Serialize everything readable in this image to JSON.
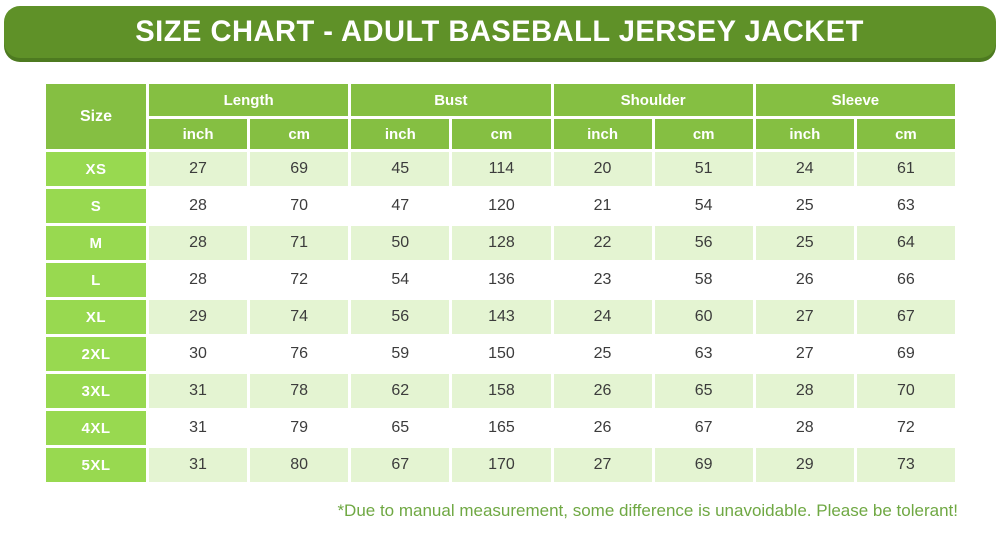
{
  "banner": {
    "title": "SIZE CHART - ADULT BASEBALL JERSEY JACKET"
  },
  "colors": {
    "banner_green": "#5f9128",
    "banner_shadow": "#4d7a20",
    "header_green": "#85bf42",
    "size_col_green": "#98d950",
    "row_alt_green": "#e4f4d2",
    "row_white": "#ffffff",
    "text_dark": "#3c3c3c",
    "footer_green": "#6fa843"
  },
  "table": {
    "size_header": "Size",
    "groups": [
      "Length",
      "Bust",
      "Shoulder",
      "Sleeve"
    ],
    "unit_headers": [
      "inch",
      "cm"
    ]
  },
  "chart_data": {
    "type": "table",
    "title": "SIZE CHART - ADULT BASEBALL JERSEY JACKET",
    "column_groups": [
      "Size",
      "Length",
      "Bust",
      "Shoulder",
      "Sleeve"
    ],
    "columns": [
      "Size",
      "Length (inch)",
      "Length (cm)",
      "Bust (inch)",
      "Bust (cm)",
      "Shoulder (inch)",
      "Shoulder (cm)",
      "Sleeve (inch)",
      "Sleeve (cm)"
    ],
    "rows": [
      [
        "XS",
        27,
        69,
        45,
        114,
        20,
        51,
        24,
        61
      ],
      [
        "S",
        28,
        70,
        47,
        120,
        21,
        54,
        25,
        63
      ],
      [
        "M",
        28,
        71,
        50,
        128,
        22,
        56,
        25,
        64
      ],
      [
        "L",
        28,
        72,
        54,
        136,
        23,
        58,
        26,
        66
      ],
      [
        "XL",
        29,
        74,
        56,
        143,
        24,
        60,
        27,
        67
      ],
      [
        "2XL",
        30,
        76,
        59,
        150,
        25,
        63,
        27,
        69
      ],
      [
        "3XL",
        31,
        78,
        62,
        158,
        26,
        65,
        28,
        70
      ],
      [
        "4XL",
        31,
        79,
        65,
        165,
        26,
        67,
        28,
        72
      ],
      [
        "5XL",
        31,
        80,
        67,
        170,
        27,
        69,
        29,
        73
      ]
    ]
  },
  "footer": {
    "note": "*Due to manual measurement, some difference is unavoidable. Please be tolerant!"
  }
}
